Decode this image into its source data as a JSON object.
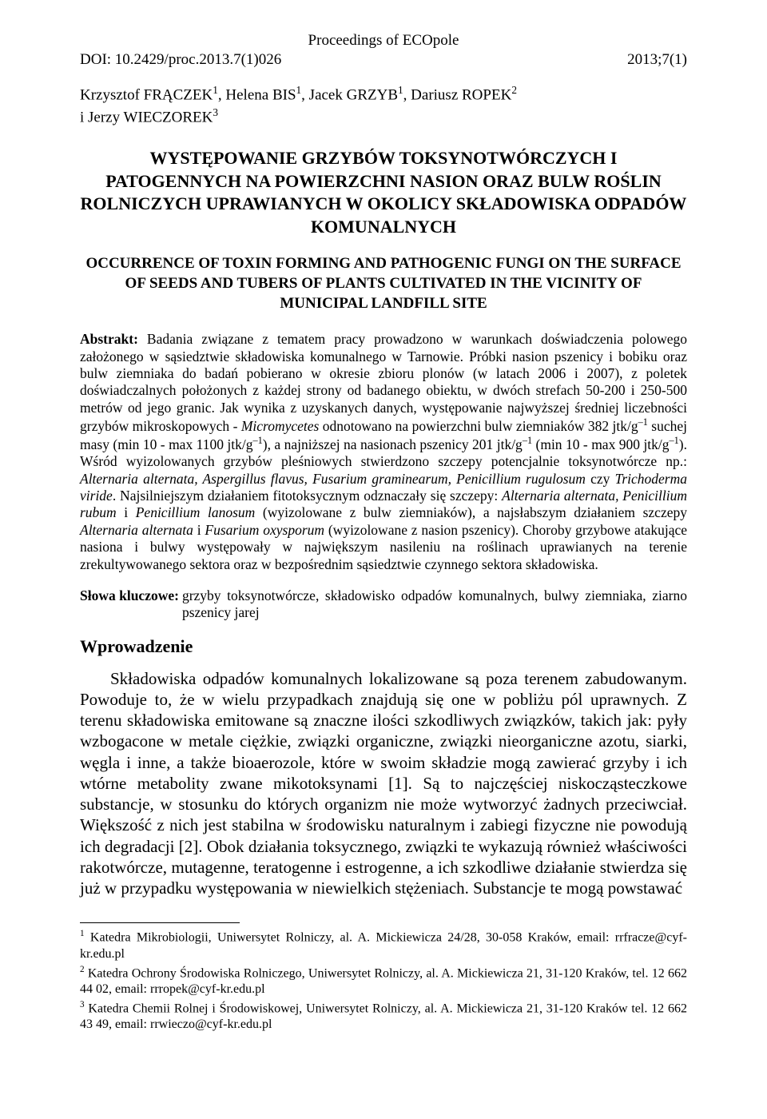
{
  "header": {
    "proceedings": "Proceedings of ECOpole",
    "doi": "DOI: 10.2429/proc.2013.7(1)026",
    "issue": "2013;7(1)"
  },
  "authors_html": "Krzysztof FRĄCZEK<span class=\"sup\">1</span>, Helena BIS<span class=\"sup\">1</span>, Jacek GRZYB<span class=\"sup\">1</span>, Dariusz ROPEK<span class=\"sup\">2</span><br>i Jerzy WIECZOREK<span class=\"sup\">3</span>",
  "title_pl": "WYSTĘPOWANIE GRZYBÓW TOKSYNOTWÓRCZYCH I PATOGENNYCH NA POWIERZCHNI NASION ORAZ BULW ROŚLIN ROLNICZYCH UPRAWIANYCH W OKOLICY SKŁADOWISKA ODPADÓW KOMUNALNYCH",
  "title_en": "OCCURRENCE OF TOXIN FORMING AND PATHOGENIC FUNGI ON THE SURFACE OF SEEDS AND TUBERS OF PLANTS CULTIVATED IN THE VICINITY OF MUNICIPAL LANDFILL SITE",
  "abstract_label": "Abstrakt:",
  "abstract_html": "Badania związane z tematem pracy prowadzono w warunkach doświadczenia polowego założonego w sąsiedztwie składowiska komunalnego w Tarnowie. Próbki nasion pszenicy i bobiku oraz bulw ziemniaka do badań pobierano w okresie zbioru plonów (w latach 2006 i 2007), z poletek doświadczalnych położonych z każdej strony od badanego obiektu, w dwóch strefach 50-200 i 250-500 metrów od jego granic. Jak wynika z uzyskanych danych, występowanie najwyższej średniej liczebności grzybów mikroskopowych - <span class=\"italic\">Micromycetes</span> odnotowano na powierzchni bulw ziemniaków 382 jtk/g<span class=\"sup\">–1</span> suchej masy (min 10 - max 1100 jtk/g<span class=\"sup\">–1</span>), a najniższej na nasionach pszenicy 201 jtk/g<span class=\"sup\">–1</span> (min 10 - max 900 jtk/g<span class=\"sup\">–1</span>). Wśród wyizolowanych grzybów pleśniowych stwierdzono szczepy potencjalnie toksynotwórcze np.: <span class=\"italic\">Alternaria alternata, Aspergillus flavus, Fusarium graminearum, Penicillium rugulosum</span> czy <span class=\"italic\">Trichoderma viride</span>. Najsilniejszym działaniem fitotoksycznym odznaczały się szczepy: <span class=\"italic\">Alternaria alternata, Penicillium rubum</span> i <span class=\"italic\">Penicillium lanosum</span> (wyizolowane z bulw ziemniaków), a najsłabszym działaniem szczepy <span class=\"italic\">Alternaria alternata</span> i <span class=\"italic\">Fusarium oxysporum</span> (wyizolowane z nasion pszenicy). Choroby grzybowe atakujące nasiona i bulwy występowały w największym nasileniu na roślinach uprawianych na terenie zrekultywowanego sektora oraz w bezpośrednim sąsiedztwie czynnego sektora składowiska.",
  "keywords_label": "Słowa kluczowe:",
  "keywords_text": "grzyby toksynotwórcze, składowisko odpadów komunalnych, bulwy ziemniaka, ziarno pszenicy jarej",
  "section_heading": "Wprowadzenie",
  "body_text": "Składowiska odpadów komunalnych lokalizowane są poza terenem zabudowanym. Powoduje to, że w wielu przypadkach znajdują się one w pobliżu pól uprawnych. Z terenu składowiska emitowane są znaczne ilości szkodliwych związków, takich jak: pyły wzbogacone w metale ciężkie, związki organiczne, związki nieorganiczne azotu, siarki, węgla i inne, a także bioaerozole, które w swoim składzie mogą zawierać grzyby i ich wtórne metabolity zwane mikotoksynami [1]. Są to najczęściej niskocząsteczkowe substancje, w stosunku do których organizm nie może wytworzyć żadnych przeciwciał. Większość z nich jest stabilna w środowisku naturalnym i zabiegi fizyczne nie powodują ich degradacji [2]. Obok działania toksycznego, związki te wykazują również właściwości rakotwórcze, mutagenne, teratogenne i estrogenne, a ich szkodliwe działanie stwierdza się już w przypadku występowania w niewielkich stężeniach. Substancje te mogą powstawać",
  "footnotes": [
    "<span class=\"sup\">1</span> Katedra Mikrobiologii, Uniwersytet Rolniczy, al. A. Mickiewicza 24/28, 30-058 Kraków, email: rrfracze@cyf-kr.edu.pl",
    "<span class=\"sup\">2</span> Katedra Ochrony Środowiska Rolniczego, Uniwersytet Rolniczy, al. A. Mickiewicza 21, 31-120 Kraków, tel. 12 662 44 02, email: rrropek@cyf-kr.edu.pl",
    "<span class=\"sup\">3</span> Katedra Chemii Rolnej i Środowiskowej, Uniwersytet Rolniczy, al. A. Mickiewicza 21, 31-120 Kraków tel. 12 662 43 49, email: rrwieczo@cyf-kr.edu.pl"
  ]
}
